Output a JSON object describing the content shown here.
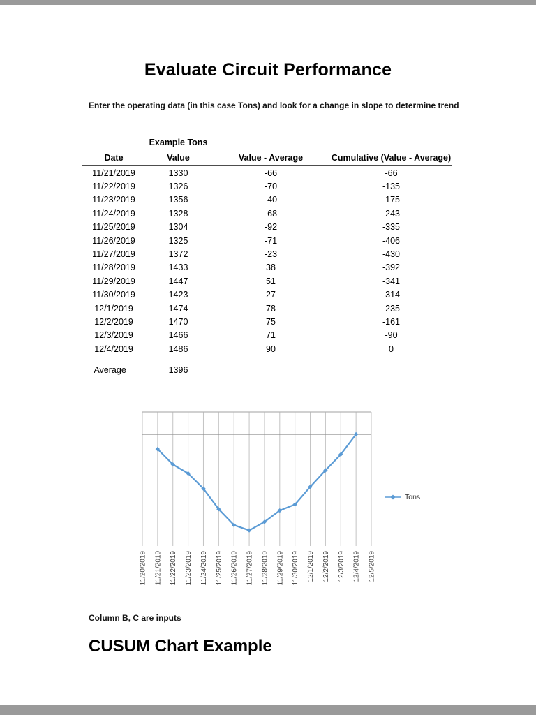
{
  "page": {
    "title": "Evaluate Circuit Performance",
    "subtitle": "Enter the operating data (in this case Tons) and look for a change in slope to determine trend",
    "footnote": "Column B, C are inputs",
    "footer_heading": "CUSUM Chart Example"
  },
  "table": {
    "group_header": "Example Tons",
    "columns": [
      "Date",
      "Value",
      "Value - Average",
      "Cumulative (Value - Average)"
    ],
    "rows": [
      [
        "11/21/2019",
        "1330",
        "-66",
        "-66"
      ],
      [
        "11/22/2019",
        "1326",
        "-70",
        "-135"
      ],
      [
        "11/23/2019",
        "1356",
        "-40",
        "-175"
      ],
      [
        "11/24/2019",
        "1328",
        "-68",
        "-243"
      ],
      [
        "11/25/2019",
        "1304",
        "-92",
        "-335"
      ],
      [
        "11/26/2019",
        "1325",
        "-71",
        "-406"
      ],
      [
        "11/27/2019",
        "1372",
        "-23",
        "-430"
      ],
      [
        "11/28/2019",
        "1433",
        "38",
        "-392"
      ],
      [
        "11/29/2019",
        "1447",
        "51",
        "-341"
      ],
      [
        "11/30/2019",
        "1423",
        "27",
        "-314"
      ],
      [
        "12/1/2019",
        "1474",
        "78",
        "-235"
      ],
      [
        "12/2/2019",
        "1470",
        "75",
        "-161"
      ],
      [
        "12/3/2019",
        "1466",
        "71",
        "-90"
      ],
      [
        "12/4/2019",
        "1486",
        "90",
        "0"
      ]
    ],
    "average_label": "Average =",
    "average_value": "1396"
  },
  "chart_data": {
    "type": "line",
    "title": "",
    "xlabel": "",
    "ylabel": "",
    "x": [
      "11/20/2019",
      "11/21/2019",
      "11/22/2019",
      "11/23/2019",
      "11/24/2019",
      "11/25/2019",
      "11/26/2019",
      "11/27/2019",
      "11/28/2019",
      "11/29/2019",
      "11/30/2019",
      "12/1/2019",
      "12/2/2019",
      "12/3/2019",
      "12/4/2019",
      "12/5/2019"
    ],
    "series": [
      {
        "name": "Tons",
        "color": "#5B9BD5",
        "values": [
          null,
          -66,
          -135,
          -175,
          -243,
          -335,
          -406,
          -430,
          -392,
          -341,
          -314,
          -235,
          -161,
          -90,
          0,
          null
        ]
      }
    ],
    "ylim": [
      -500,
      100
    ],
    "zero_line": 0,
    "grid": "vertical-category-gridlines",
    "legend_position": "right",
    "marker": "diamond"
  }
}
